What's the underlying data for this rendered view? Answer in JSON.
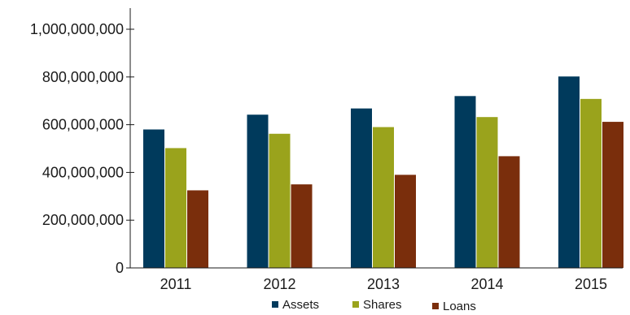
{
  "chart_data": {
    "type": "bar",
    "title": "",
    "xlabel": "",
    "ylabel": "",
    "categories": [
      "2011",
      "2012",
      "2013",
      "2014",
      "2015"
    ],
    "series": [
      {
        "name": "Assets",
        "values": [
          580000000,
          642000000,
          668000000,
          720000000,
          802000000
        ],
        "color": "#003a5c"
      },
      {
        "name": "Shares",
        "values": [
          502000000,
          562000000,
          590000000,
          632000000,
          708000000
        ],
        "color": "#9aa31c"
      },
      {
        "name": "Loans",
        "values": [
          325000000,
          350000000,
          390000000,
          468000000,
          612000000
        ],
        "color": "#7a2e0c"
      }
    ],
    "ylim": [
      0,
      1000000000
    ],
    "yticks": [
      0,
      200000000,
      400000000,
      600000000,
      800000000,
      1000000000
    ],
    "ytick_labels": [
      "0",
      "200,000,000",
      "400,000,000",
      "600,000,000",
      "800,000,000",
      "1,000,000,000"
    ],
    "grid": false,
    "legend_position": "bottom-center"
  }
}
